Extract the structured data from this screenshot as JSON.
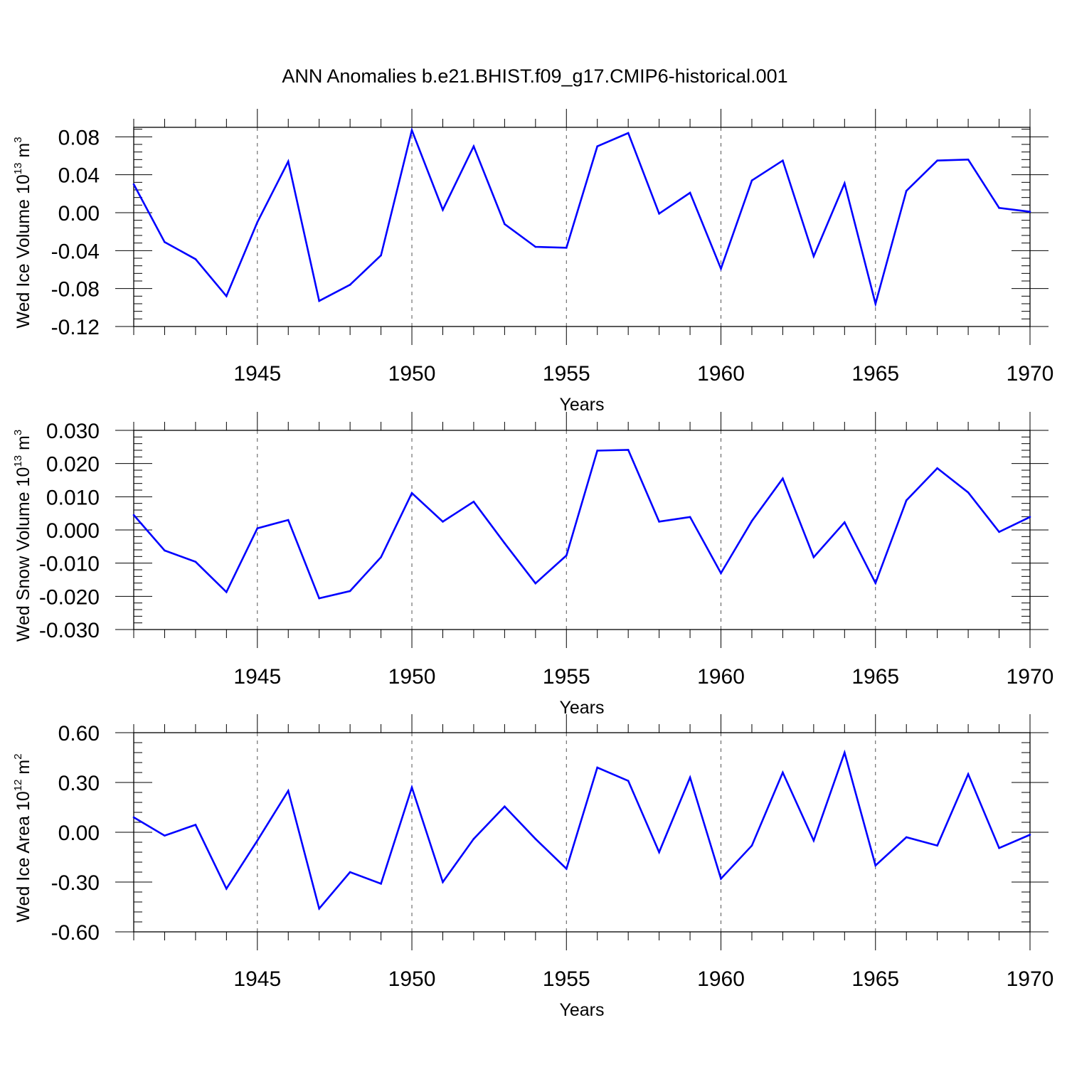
{
  "figure": {
    "title": "ANN Anomalies b.e21.BHIST.f09_g17.CMIP6-historical.001"
  },
  "colors": {
    "series": "#0000ff",
    "axis": "#000000",
    "grid": "#555555"
  },
  "chart_data": [
    {
      "type": "line",
      "ylabel": {
        "base": "Wed Ice Volume 10",
        "exp": "13",
        "unit": " m",
        "unit_exp": "3"
      },
      "xlabel": "Years",
      "xlim": [
        1941,
        1970
      ],
      "ylim": [
        -0.12,
        0.09
      ],
      "yticks": [
        -0.12,
        -0.08,
        -0.04,
        0.0,
        0.04,
        0.08
      ],
      "ytick_labels": [
        "-0.12",
        "-0.08",
        "-0.04",
        "0.00",
        "0.04",
        "0.08"
      ],
      "xticks": [
        1945,
        1950,
        1955,
        1960,
        1965,
        1970
      ],
      "xtick_labels": [
        "1945",
        "1950",
        "1955",
        "1960",
        "1965",
        "1970"
      ],
      "x": [
        1941,
        1942,
        1943,
        1944,
        1945,
        1946,
        1947,
        1948,
        1949,
        1950,
        1951,
        1952,
        1953,
        1954,
        1955,
        1956,
        1957,
        1958,
        1959,
        1960,
        1961,
        1962,
        1963,
        1964,
        1965,
        1966,
        1967,
        1968,
        1969,
        1970
      ],
      "values": [
        0.03,
        -0.031,
        -0.049,
        -0.088,
        -0.01,
        0.054,
        -0.093,
        -0.076,
        -0.045,
        0.087,
        0.003,
        0.07,
        -0.012,
        -0.036,
        -0.037,
        0.07,
        0.084,
        -0.001,
        0.021,
        -0.059,
        0.034,
        0.055,
        -0.046,
        0.031,
        -0.096,
        0.023,
        0.055,
        0.056,
        0.005,
        0.001
      ]
    },
    {
      "type": "line",
      "ylabel": {
        "base": "Wed Snow Volume 10",
        "exp": "13",
        "unit": " m",
        "unit_exp": "3"
      },
      "xlabel": "Years",
      "xlim": [
        1941,
        1970
      ],
      "ylim": [
        -0.03,
        0.03
      ],
      "yticks": [
        -0.03,
        -0.02,
        -0.01,
        0.0,
        0.01,
        0.02,
        0.03
      ],
      "ytick_labels": [
        "-0.030",
        "-0.020",
        "-0.010",
        "0.000",
        "0.010",
        "0.020",
        "0.030"
      ],
      "xticks": [
        1945,
        1950,
        1955,
        1960,
        1965,
        1970
      ],
      "xtick_labels": [
        "1945",
        "1950",
        "1955",
        "1960",
        "1965",
        "1970"
      ],
      "x": [
        1941,
        1942,
        1943,
        1944,
        1945,
        1946,
        1947,
        1948,
        1949,
        1950,
        1951,
        1952,
        1953,
        1954,
        1955,
        1956,
        1957,
        1958,
        1959,
        1960,
        1961,
        1962,
        1963,
        1964,
        1965,
        1966,
        1967,
        1968,
        1969,
        1970
      ],
      "values": [
        0.0045,
        -0.0062,
        -0.0096,
        -0.0187,
        0.0005,
        0.003,
        -0.0206,
        -0.0184,
        -0.0082,
        0.0111,
        0.0025,
        0.0085,
        -0.004,
        -0.0161,
        -0.0077,
        0.0239,
        0.0241,
        0.0025,
        0.0039,
        -0.013,
        0.0027,
        0.0155,
        -0.0082,
        0.0023,
        -0.016,
        0.0089,
        0.0186,
        0.0113,
        -0.0006,
        0.0039
      ]
    },
    {
      "type": "line",
      "ylabel": {
        "base": "Wed Ice Area 10",
        "exp": "12",
        "unit": " m",
        "unit_exp": "2"
      },
      "xlabel": "Years",
      "xlim": [
        1941,
        1970
      ],
      "ylim": [
        -0.6,
        0.6
      ],
      "yticks": [
        -0.6,
        -0.3,
        0.0,
        0.3,
        0.6
      ],
      "ytick_labels": [
        "-0.60",
        "-0.30",
        "0.00",
        "0.30",
        "0.60"
      ],
      "xticks": [
        1945,
        1950,
        1955,
        1960,
        1965,
        1970
      ],
      "xtick_labels": [
        "1945",
        "1950",
        "1955",
        "1960",
        "1965",
        "1970"
      ],
      "x": [
        1941,
        1942,
        1943,
        1944,
        1945,
        1946,
        1947,
        1948,
        1949,
        1950,
        1951,
        1952,
        1953,
        1954,
        1955,
        1956,
        1957,
        1958,
        1959,
        1960,
        1961,
        1962,
        1963,
        1964,
        1965,
        1966,
        1967,
        1968,
        1969,
        1970
      ],
      "values": [
        0.09,
        -0.02,
        0.045,
        -0.34,
        -0.05,
        0.25,
        -0.46,
        -0.24,
        -0.31,
        0.27,
        -0.3,
        -0.04,
        0.155,
        -0.04,
        -0.22,
        0.39,
        0.31,
        -0.12,
        0.33,
        -0.28,
        -0.08,
        0.36,
        -0.05,
        0.48,
        -0.2,
        -0.03,
        -0.08,
        0.35,
        -0.095,
        -0.015
      ]
    }
  ]
}
